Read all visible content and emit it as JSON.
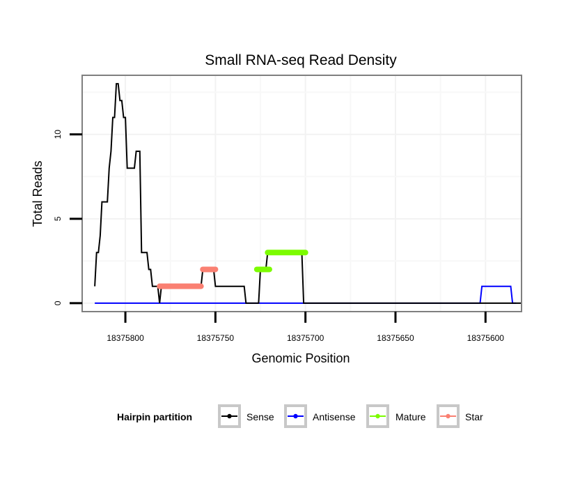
{
  "chart_data": {
    "type": "line",
    "title": "Small RNA-seq Read Density",
    "xlabel": "Genomic Position",
    "ylabel": "Total Reads",
    "x_reversed": true,
    "xlim": [
      18375580,
      18375824
    ],
    "ylim": [
      -0.5,
      13.5
    ],
    "x_ticks": [
      18375800,
      18375750,
      18375700,
      18375650,
      18375600
    ],
    "x_tick_labels": [
      "18375800",
      "18375750",
      "18375700",
      "18375650",
      "18375600"
    ],
    "y_ticks": [
      0,
      5,
      10
    ],
    "y_tick_labels": [
      "0",
      "5",
      "10"
    ],
    "grid": true,
    "legend": {
      "title": "Hairpin partition",
      "position": "bottom",
      "entries": [
        {
          "name": "Sense",
          "color": "#000000"
        },
        {
          "name": "Antisense",
          "color": "#0000ff"
        },
        {
          "name": "Mature",
          "color": "#7cfc00"
        },
        {
          "name": "Star",
          "color": "#fa8072"
        }
      ]
    },
    "series": [
      {
        "name": "Sense",
        "color": "#000000",
        "width": 2,
        "points": [
          [
            18375817,
            1
          ],
          [
            18375816,
            3
          ],
          [
            18375815,
            3
          ],
          [
            18375814,
            4
          ],
          [
            18375813,
            6
          ],
          [
            18375812,
            6
          ],
          [
            18375810,
            6
          ],
          [
            18375809,
            8
          ],
          [
            18375808,
            9
          ],
          [
            18375807,
            11
          ],
          [
            18375806,
            11
          ],
          [
            18375805,
            13
          ],
          [
            18375804,
            13
          ],
          [
            18375803,
            12
          ],
          [
            18375802,
            12
          ],
          [
            18375801,
            11
          ],
          [
            18375800,
            11
          ],
          [
            18375799,
            8
          ],
          [
            18375798,
            8
          ],
          [
            18375796,
            8
          ],
          [
            18375795,
            8
          ],
          [
            18375794,
            9
          ],
          [
            18375793,
            9
          ],
          [
            18375792,
            9
          ],
          [
            18375791,
            3
          ],
          [
            18375790,
            3
          ],
          [
            18375788,
            3
          ],
          [
            18375787,
            2
          ],
          [
            18375786,
            2
          ],
          [
            18375785,
            1
          ],
          [
            18375784,
            1
          ],
          [
            18375782,
            1
          ],
          [
            18375781,
            0
          ],
          [
            18375780,
            1
          ],
          [
            18375779,
            1
          ],
          [
            18375758,
            1
          ],
          [
            18375757,
            2
          ],
          [
            18375751,
            2
          ],
          [
            18375750,
            1
          ],
          [
            18375734,
            1
          ],
          [
            18375733,
            0
          ],
          [
            18375726,
            0
          ],
          [
            18375725,
            2
          ],
          [
            18375722,
            2
          ],
          [
            18375721,
            3
          ],
          [
            18375702,
            3
          ],
          [
            18375701,
            0
          ],
          [
            18375580,
            0
          ]
        ]
      },
      {
        "name": "Antisense",
        "color": "#0000ff",
        "width": 2,
        "points": [
          [
            18375817,
            0
          ],
          [
            18375603,
            0
          ],
          [
            18375602,
            1
          ],
          [
            18375586,
            1
          ],
          [
            18375585,
            0
          ],
          [
            18375583,
            0
          ]
        ]
      },
      {
        "name": "Mature",
        "color": "#7cfc00",
        "width": 5,
        "segments": [
          {
            "x_from": 18375727,
            "x_to": 18375720,
            "y": 2
          },
          {
            "x_from": 18375721,
            "x_to": 18375700,
            "y": 3
          }
        ]
      },
      {
        "name": "Star",
        "color": "#fa8072",
        "width": 5,
        "segments": [
          {
            "x_from": 18375781,
            "x_to": 18375758,
            "y": 1
          },
          {
            "x_from": 18375757,
            "x_to": 18375750,
            "y": 2
          }
        ]
      }
    ]
  }
}
